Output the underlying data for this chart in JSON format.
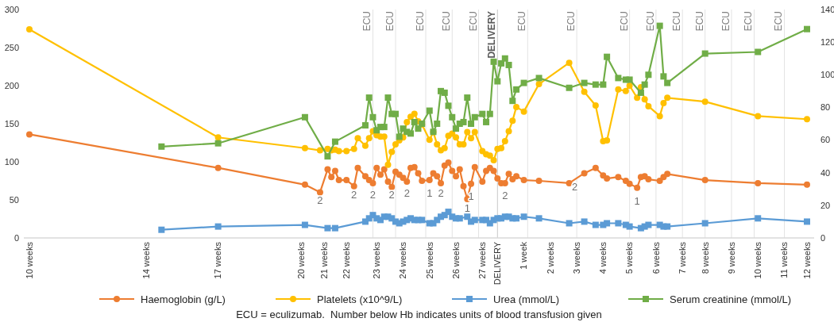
{
  "chart_data": {
    "type": "line",
    "legend": "bottom",
    "line_style": "solid",
    "categories": [
      "10 weeks",
      null,
      null,
      null,
      null,
      null,
      null,
      null,
      null,
      null,
      null,
      null,
      null,
      null,
      null,
      null,
      null,
      null,
      null,
      null,
      null,
      null,
      null,
      null,
      null,
      null,
      null,
      null,
      null,
      null,
      null,
      "14 weeks",
      null,
      null,
      null,
      null,
      null,
      null,
      null,
      null,
      null,
      null,
      null,
      null,
      null,
      null,
      null,
      null,
      null,
      null,
      "17 weeks",
      null,
      null,
      null,
      null,
      null,
      null,
      null,
      null,
      null,
      null,
      null,
      null,
      null,
      null,
      null,
      null,
      null,
      null,
      null,
      null,
      null,
      "20 weeks",
      null,
      null,
      null,
      null,
      null,
      "21 weeks",
      null,
      null,
      null,
      null,
      null,
      "22 weeks",
      null,
      null,
      null,
      null,
      null,
      null,
      null,
      "23 weeks",
      null,
      null,
      null,
      null,
      null,
      null,
      "24 weeks",
      null,
      null,
      null,
      null,
      null,
      null,
      "25 weeks",
      null,
      null,
      null,
      null,
      null,
      null,
      "26 weeks",
      null,
      null,
      null,
      null,
      null,
      null,
      "27 weeks",
      null,
      null,
      null,
      "DELIVERY",
      null,
      null,
      null,
      null,
      null,
      null,
      "1 week",
      null,
      null,
      null,
      null,
      null,
      null,
      "2 weeks",
      null,
      null,
      null,
      null,
      null,
      null,
      "3 weeks",
      null,
      null,
      null,
      null,
      null,
      null,
      "4 weeks",
      null,
      null,
      null,
      null,
      null,
      null,
      "5 weeks",
      null,
      null,
      null,
      null,
      null,
      null,
      "6 weeks",
      null,
      null,
      null,
      null,
      null,
      null,
      "7 weeks",
      null,
      null,
      null,
      null,
      null,
      "8 weeks",
      null,
      null,
      null,
      null,
      null,
      null,
      "9 weeks",
      null,
      null,
      null,
      null,
      null,
      null,
      "10 weeks",
      null,
      null,
      null,
      null,
      null,
      null,
      "11 weeks",
      null,
      null,
      null,
      null,
      null,
      "12 weeks"
    ],
    "ylim": [
      0,
      300
    ],
    "yticks": [
      0,
      50,
      100,
      150,
      200,
      250,
      300
    ],
    "y2lim": [
      0,
      140
    ],
    "y2ticks": [
      0,
      20,
      40,
      60,
      80,
      100,
      120,
      140
    ],
    "series": [
      {
        "name": "Haemoglobin (g/L)",
        "color": "#ed7d31",
        "marker": "circle",
        "values": [
          136,
          null,
          null,
          null,
          null,
          null,
          null,
          null,
          null,
          null,
          null,
          null,
          null,
          null,
          null,
          null,
          null,
          null,
          null,
          null,
          null,
          null,
          null,
          null,
          null,
          null,
          null,
          null,
          null,
          null,
          null,
          null,
          null,
          null,
          null,
          null,
          null,
          null,
          null,
          null,
          null,
          null,
          null,
          null,
          null,
          null,
          null,
          null,
          null,
          null,
          92,
          null,
          null,
          null,
          null,
          null,
          null,
          null,
          null,
          null,
          null,
          null,
          null,
          null,
          null,
          null,
          null,
          null,
          null,
          null,
          null,
          null,
          null,
          70,
          null,
          null,
          null,
          60,
          null,
          90,
          80,
          88,
          76,
          null,
          76,
          null,
          68,
          92,
          null,
          81,
          76,
          72,
          92,
          83,
          90,
          74,
          67,
          87,
          83,
          79,
          74,
          92,
          93,
          85,
          75,
          null,
          76,
          85,
          81,
          72,
          95,
          99,
          88,
          81,
          90,
          68,
          51,
          71,
          93,
          null,
          74,
          88,
          92,
          88,
          78,
          72,
          72,
          84,
          77,
          81,
          null,
          76,
          null,
          null,
          null,
          75,
          null,
          null,
          null,
          null,
          null,
          null,
          null,
          72,
          null,
          null,
          null,
          85,
          null,
          null,
          92,
          null,
          82,
          78,
          null,
          null,
          80,
          null,
          75,
          71,
          null,
          66,
          80,
          81,
          77,
          null,
          null,
          75,
          80,
          84,
          null,
          null,
          null,
          null,
          null,
          null,
          null,
          null,
          null,
          76,
          null,
          null,
          null,
          null,
          null,
          null,
          null,
          null,
          null,
          null,
          null,
          null,
          null,
          72,
          null,
          null,
          null,
          null,
          null,
          null,
          null,
          null,
          null,
          null,
          null,
          null,
          70
        ]
      },
      {
        "name": "Platelets (x10^9/L)",
        "color": "#ffc000",
        "marker": "circle",
        "values": [
          274,
          null,
          null,
          null,
          null,
          null,
          null,
          null,
          null,
          null,
          null,
          null,
          null,
          null,
          null,
          null,
          null,
          null,
          null,
          null,
          null,
          null,
          null,
          null,
          null,
          null,
          null,
          null,
          null,
          null,
          null,
          null,
          null,
          null,
          null,
          null,
          null,
          null,
          null,
          null,
          null,
          null,
          null,
          null,
          null,
          null,
          null,
          null,
          null,
          null,
          132,
          null,
          null,
          null,
          null,
          null,
          null,
          null,
          null,
          null,
          null,
          null,
          null,
          null,
          null,
          null,
          null,
          null,
          null,
          null,
          null,
          null,
          null,
          118,
          null,
          null,
          null,
          115,
          null,
          117,
          115,
          116,
          114,
          null,
          114,
          null,
          117,
          131,
          null,
          121,
          131,
          140,
          135,
          133,
          133,
          96,
          113,
          123,
          128,
          132,
          152,
          159,
          163,
          153,
          149,
          null,
          129,
          139,
          123,
          115,
          118,
          134,
          137,
          132,
          123,
          123,
          139,
          131,
          139,
          null,
          114,
          110,
          108,
          102,
          117,
          118,
          127,
          140,
          154,
          172,
          null,
          166,
          null,
          null,
          null,
          202,
          null,
          null,
          null,
          null,
          null,
          null,
          null,
          230,
          null,
          null,
          null,
          192,
          null,
          null,
          174,
          null,
          127,
          128,
          null,
          null,
          195,
          null,
          193,
          200,
          null,
          184,
          198,
          182,
          173,
          null,
          null,
          160,
          177,
          184,
          null,
          null,
          null,
          null,
          null,
          null,
          null,
          null,
          null,
          179,
          null,
          null,
          null,
          null,
          null,
          null,
          null,
          null,
          null,
          null,
          null,
          null,
          null,
          160,
          null,
          null,
          null,
          null,
          null,
          null,
          null,
          null,
          null,
          null,
          null,
          null,
          156
        ]
      },
      {
        "name": "Urea (mmol/L)",
        "color": "#5b9bd5",
        "marker": "square",
        "axis": "y2",
        "values": [
          null,
          null,
          null,
          null,
          null,
          null,
          null,
          null,
          null,
          null,
          null,
          null,
          null,
          null,
          null,
          null,
          null,
          null,
          null,
          null,
          null,
          null,
          null,
          null,
          null,
          null,
          null,
          null,
          null,
          null,
          null,
          null,
          null,
          null,
          null,
          5,
          null,
          null,
          null,
          null,
          null,
          null,
          null,
          null,
          null,
          null,
          null,
          null,
          null,
          null,
          7,
          null,
          null,
          null,
          null,
          null,
          null,
          null,
          null,
          null,
          null,
          null,
          null,
          null,
          null,
          null,
          null,
          null,
          null,
          null,
          null,
          null,
          null,
          8,
          null,
          null,
          null,
          null,
          null,
          6,
          null,
          6,
          null,
          null,
          null,
          null,
          null,
          null,
          null,
          10,
          12,
          14,
          12,
          11,
          13,
          13,
          12,
          10,
          9,
          10,
          11,
          12,
          11,
          11,
          11,
          null,
          9,
          9,
          11,
          13,
          14,
          16,
          13,
          12,
          12,
          null,
          13,
          10,
          11,
          null,
          11,
          11,
          9,
          11,
          12,
          12,
          13,
          13,
          12,
          12,
          null,
          13,
          null,
          null,
          null,
          12,
          null,
          null,
          null,
          null,
          null,
          null,
          null,
          9,
          null,
          null,
          null,
          10,
          null,
          null,
          8,
          null,
          8,
          9,
          null,
          null,
          9,
          null,
          8,
          7,
          null,
          null,
          6,
          7,
          8,
          null,
          null,
          8,
          7,
          7,
          null,
          null,
          null,
          null,
          null,
          null,
          null,
          null,
          null,
          9,
          null,
          null,
          null,
          null,
          null,
          null,
          null,
          null,
          null,
          null,
          null,
          null,
          null,
          12,
          null,
          null,
          null,
          null,
          null,
          null,
          null,
          null,
          null,
          null,
          null,
          null,
          10
        ]
      },
      {
        "name": "Serum creatinine (mmol/L)",
        "color": "#70ad47",
        "marker": "square",
        "axis": "y2",
        "values": [
          null,
          null,
          null,
          null,
          null,
          null,
          null,
          null,
          null,
          null,
          null,
          null,
          null,
          null,
          null,
          null,
          null,
          null,
          null,
          null,
          null,
          null,
          null,
          null,
          null,
          null,
          null,
          null,
          null,
          null,
          null,
          null,
          null,
          null,
          null,
          56,
          null,
          null,
          null,
          null,
          null,
          null,
          null,
          null,
          null,
          null,
          null,
          null,
          null,
          null,
          58,
          null,
          null,
          null,
          null,
          null,
          null,
          null,
          null,
          null,
          null,
          null,
          null,
          null,
          null,
          null,
          null,
          null,
          null,
          null,
          null,
          null,
          null,
          74,
          null,
          null,
          null,
          null,
          null,
          50,
          null,
          59,
          null,
          null,
          null,
          null,
          null,
          null,
          null,
          69,
          86,
          74,
          66,
          68,
          68,
          86,
          76,
          76,
          62,
          67,
          65,
          64,
          71,
          67,
          70,
          null,
          78,
          65,
          70,
          90,
          89,
          81,
          74,
          67,
          70,
          71,
          86,
          70,
          74,
          null,
          76,
          71,
          76,
          108,
          96,
          107,
          110,
          106,
          84,
          91,
          null,
          95,
          null,
          null,
          null,
          98,
          null,
          null,
          null,
          null,
          null,
          null,
          null,
          92,
          null,
          null,
          null,
          95,
          null,
          null,
          94,
          null,
          94,
          111,
          null,
          null,
          98,
          null,
          97,
          97,
          null,
          null,
          89,
          94,
          100,
          null,
          null,
          130,
          99,
          95,
          null,
          null,
          null,
          null,
          null,
          null,
          null,
          null,
          null,
          113,
          null,
          null,
          null,
          null,
          null,
          null,
          null,
          null,
          null,
          null,
          null,
          null,
          null,
          114,
          null,
          null,
          null,
          null,
          null,
          null,
          null,
          null,
          null,
          null,
          null,
          null,
          128
        ]
      }
    ],
    "annotations": [
      "ECU",
      "ECU",
      "ECU",
      "ECU",
      "ECU",
      "DELIVERY",
      "ECU",
      "ECU",
      "ECU",
      "ECU",
      "ECU",
      "ECU",
      "ECU",
      "ECU",
      "ECU",
      "2",
      "2",
      "2",
      "2",
      "2",
      "1",
      "2",
      "1",
      "1",
      "2",
      "2",
      "1",
      "ECU = eculizumab.  Number below Hb indicates units of blood transfusion given"
    ]
  }
}
